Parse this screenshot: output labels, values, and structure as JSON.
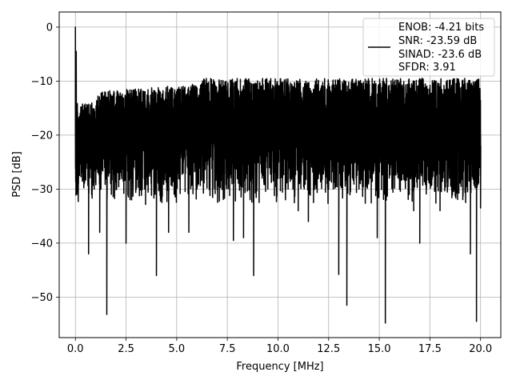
{
  "chart_data": {
    "type": "line",
    "title": "",
    "xlabel": "Frequency [MHz]",
    "ylabel": "PSD [dB]",
    "xlim": [
      -0.8,
      21.0
    ],
    "ylim": [
      -57.5,
      2.8
    ],
    "xticks": [
      0.0,
      2.5,
      5.0,
      7.5,
      10.0,
      12.5,
      15.0,
      17.5,
      20.0
    ],
    "xtick_labels": [
      "0.0",
      "2.5",
      "5.0",
      "7.5",
      "10.0",
      "12.5",
      "15.0",
      "17.5",
      "20.0"
    ],
    "yticks": [
      0,
      -10,
      -20,
      -30,
      -40,
      -50
    ],
    "ytick_labels": [
      "0",
      "−10",
      "−20",
      "−30",
      "−40",
      "−50"
    ],
    "grid": true,
    "legend_position": "top-right",
    "legend_lines": [
      "ENOB: -4.21 bits",
      "SNR: -23.59 dB",
      "SINAD: -23.6 dB",
      "SFDR: 3.91"
    ],
    "line_color": "#000000",
    "series": [
      {
        "name": "ENOB: -4.21 bits\nSNR: -23.59 dB\nSINAD: -23.6 dB\nSFDR: 3.91",
        "description": "noise-like power spectral density, approximately -10 to -35 dB across 0-20 MHz",
        "x": [
          0.0,
          0.04,
          0.08,
          0.15,
          0.25,
          0.65,
          1.2,
          1.55,
          2.5,
          3.0,
          4.0,
          4.6,
          5.0,
          5.6,
          6.0,
          7.0,
          7.8,
          8.3,
          8.8,
          9.5,
          10.0,
          10.5,
          11.0,
          11.5,
          12.0,
          12.5,
          13.0,
          13.4,
          14.0,
          14.9,
          15.3,
          16.0,
          16.7,
          17.0,
          17.5,
          18.0,
          18.8,
          19.5,
          19.8,
          20.0
        ],
        "y": [
          0.0,
          -4.5,
          -16.0,
          -28.0,
          -22.0,
          -42.0,
          -38.0,
          -53.2,
          -40.0,
          -30.0,
          -46.0,
          -38.0,
          -28.0,
          -38.0,
          -30.0,
          -30.0,
          -39.5,
          -39.0,
          -46.0,
          -30.0,
          -28.0,
          -30.0,
          -34.0,
          -36.0,
          -26.0,
          -30.0,
          -45.8,
          -51.5,
          -30.0,
          -39.0,
          -54.8,
          -30.0,
          -34.0,
          -40.0,
          -28.0,
          -34.0,
          -30.0,
          -42.0,
          -54.5,
          -33.5
        ]
      }
    ]
  }
}
